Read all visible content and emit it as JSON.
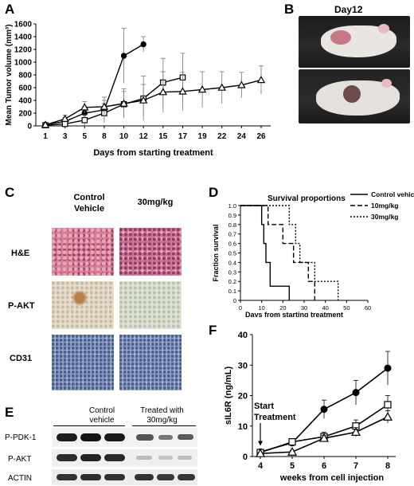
{
  "panels": {
    "A": "A",
    "B": "B",
    "C": "C",
    "D": "D",
    "E": "E",
    "F": "F"
  },
  "panel_b": {
    "title": "Day12"
  },
  "panel_c": {
    "columns": [
      "Control\nVehicle",
      "30mg/kg"
    ],
    "col1_line1": "Control",
    "col1_line2": "Vehicle",
    "col2": "30mg/kg",
    "rows": [
      "H&E",
      "P-AKT",
      "CD31"
    ]
  },
  "panel_e": {
    "group1_line1": "Control",
    "group1_line2": "vehicle",
    "group2_line1": "Treated with",
    "group2_line2": "30mg/kg",
    "rows": [
      "P-PDK-1",
      "P-AKT",
      "ACTIN"
    ]
  },
  "chart_data": [
    {
      "panel": "A",
      "type": "line",
      "ylabel": "Mean Tumor volume (mm³)",
      "xlabel": "Days  from starting treatment",
      "categories": [
        "1",
        "3",
        "5",
        "8",
        "10",
        "12",
        "15",
        "17",
        "19",
        "22",
        "24",
        "26"
      ],
      "ylim": [
        0,
        1600
      ],
      "yticks": [
        0,
        200,
        400,
        600,
        800,
        1000,
        1200,
        1400,
        1600
      ],
      "series": [
        {
          "marker": "filled-circle",
          "x": [
            "1",
            "3",
            "5",
            "8",
            "10",
            "12"
          ],
          "values": [
            20,
            70,
            200,
            250,
            1100,
            1280
          ],
          "err": [
            20,
            60,
            110,
            150,
            430,
            120
          ]
        },
        {
          "marker": "open-square",
          "x": [
            "1",
            "3",
            "5",
            "8",
            "10",
            "12",
            "15",
            "17"
          ],
          "values": [
            10,
            30,
            90,
            200,
            340,
            430,
            680,
            760
          ],
          "err": [
            10,
            40,
            80,
            150,
            200,
            350,
            380,
            380
          ]
        },
        {
          "marker": "open-triangle",
          "x": [
            "1",
            "3",
            "5",
            "8",
            "10",
            "12",
            "15",
            "17",
            "19",
            "22",
            "24",
            "26"
          ],
          "values": [
            15,
            110,
            290,
            300,
            350,
            400,
            530,
            540,
            570,
            600,
            640,
            720
          ],
          "err": [
            10,
            60,
            90,
            150,
            230,
            250,
            320,
            300,
            280,
            250,
            200,
            220
          ]
        }
      ]
    },
    {
      "panel": "D",
      "type": "line",
      "title": "Survival proportions",
      "ylabel": "Fraction survival",
      "xlabel": "Days  from starting treatment",
      "xlim": [
        0,
        60
      ],
      "xticks": [
        0,
        10,
        20,
        30,
        40,
        50,
        60
      ],
      "ylim": [
        0,
        1
      ],
      "yticks": [
        "0",
        "0.1",
        "0.2",
        "0.3",
        "0.4",
        "0.5",
        "0.6",
        "0.7",
        "0.8",
        "0.9",
        "1.0"
      ],
      "series": [
        {
          "name": "Control vehicle",
          "style": "solid",
          "steps": [
            [
              0,
              1.0
            ],
            [
              10,
              1.0
            ],
            [
              10,
              0.8
            ],
            [
              11,
              0.8
            ],
            [
              11,
              0.6
            ],
            [
              12,
              0.6
            ],
            [
              12,
              0.4
            ],
            [
              14,
              0.4
            ],
            [
              14,
              0.15
            ],
            [
              23,
              0.15
            ],
            [
              23,
              0
            ]
          ]
        },
        {
          "name": "10mg/kg",
          "style": "dashed",
          "steps": [
            [
              0,
              1.0
            ],
            [
              13,
              1.0
            ],
            [
              13,
              0.8
            ],
            [
              20,
              0.8
            ],
            [
              20,
              0.6
            ],
            [
              25,
              0.6
            ],
            [
              25,
              0.4
            ],
            [
              32,
              0.4
            ],
            [
              32,
              0.2
            ],
            [
              35,
              0.2
            ],
            [
              35,
              0
            ]
          ]
        },
        {
          "name": "30mg/kg",
          "style": "dotted",
          "steps": [
            [
              0,
              1.0
            ],
            [
              23,
              1.0
            ],
            [
              23,
              0.8
            ],
            [
              26,
              0.8
            ],
            [
              26,
              0.6
            ],
            [
              28,
              0.6
            ],
            [
              28,
              0.4
            ],
            [
              35,
              0.4
            ],
            [
              35,
              0.2
            ],
            [
              46,
              0.2
            ],
            [
              46,
              0
            ]
          ]
        }
      ]
    },
    {
      "panel": "F",
      "type": "line",
      "ylabel": "sIL6R (ng/mL)",
      "xlabel": "weeks from cell injection",
      "categories": [
        "4",
        "5",
        "6",
        "7",
        "8"
      ],
      "ylim": [
        0,
        40
      ],
      "yticks": [
        0,
        10,
        20,
        30,
        40
      ],
      "annotation": {
        "line1": "Start",
        "line2": "Treatment",
        "x": "4"
      },
      "series": [
        {
          "marker": "filled-circle",
          "values": [
            1.5,
            4.5,
            15.5,
            21,
            29
          ],
          "err": [
            0.5,
            1,
            3,
            4,
            5.5
          ]
        },
        {
          "marker": "open-square",
          "values": [
            1.3,
            4.8,
            6.5,
            10,
            17
          ],
          "err": [
            0.5,
            1,
            1.5,
            2,
            3
          ]
        },
        {
          "marker": "open-triangle",
          "values": [
            1.0,
            1.5,
            6,
            8,
            13
          ],
          "err": [
            0.3,
            0.5,
            1,
            1.5,
            2
          ]
        }
      ]
    }
  ]
}
